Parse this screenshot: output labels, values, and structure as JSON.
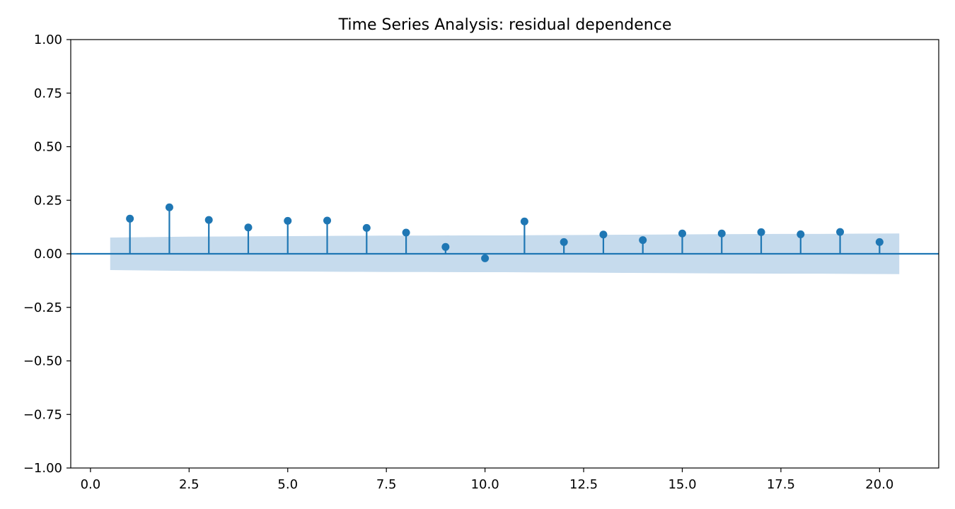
{
  "chart_data": {
    "type": "stem",
    "title": "Time Series Analysis: residual dependence",
    "xlabel": "",
    "ylabel": "",
    "xlim": [
      -0.5,
      21.5
    ],
    "ylim": [
      -1.0,
      1.0
    ],
    "x_ticks": [
      0.0,
      2.5,
      5.0,
      7.5,
      10.0,
      12.5,
      15.0,
      17.5,
      20.0
    ],
    "x_tick_labels": [
      "0.0",
      "2.5",
      "5.0",
      "7.5",
      "10.0",
      "12.5",
      "15.0",
      "17.5",
      "20.0"
    ],
    "y_ticks": [
      -1.0,
      -0.75,
      -0.5,
      -0.25,
      0.0,
      0.25,
      0.5,
      0.75,
      1.0
    ],
    "y_tick_labels": [
      "−1.00",
      "−0.75",
      "−0.50",
      "−0.25",
      "0.00",
      "0.25",
      "0.50",
      "0.75",
      "1.00"
    ],
    "lags": [
      1,
      2,
      3,
      4,
      5,
      6,
      7,
      8,
      9,
      10,
      11,
      12,
      13,
      14,
      15,
      16,
      17,
      18,
      19,
      20
    ],
    "values": [
      0.164,
      0.217,
      0.158,
      0.123,
      0.154,
      0.155,
      0.121,
      0.099,
      0.032,
      -0.021,
      0.151,
      0.055,
      0.09,
      0.064,
      0.095,
      0.095,
      0.101,
      0.091,
      0.102,
      0.055
    ],
    "confidence_band": {
      "x": [
        0.5,
        1.5,
        2.5,
        3.5,
        4.5,
        5.5,
        6.5,
        7.5,
        8.5,
        9.5,
        10.5,
        11.5,
        12.5,
        13.5,
        14.5,
        15.5,
        16.5,
        17.5,
        18.5,
        19.5,
        20.5
      ],
      "upper": [
        0.076,
        0.078,
        0.08,
        0.081,
        0.082,
        0.083,
        0.084,
        0.085,
        0.085,
        0.086,
        0.086,
        0.087,
        0.088,
        0.089,
        0.09,
        0.091,
        0.092,
        0.093,
        0.093,
        0.094,
        0.095
      ]
    },
    "grid": false,
    "colors": {
      "stem": "#1f77b4",
      "band": "#c6dbed",
      "axis": "#000000"
    }
  }
}
